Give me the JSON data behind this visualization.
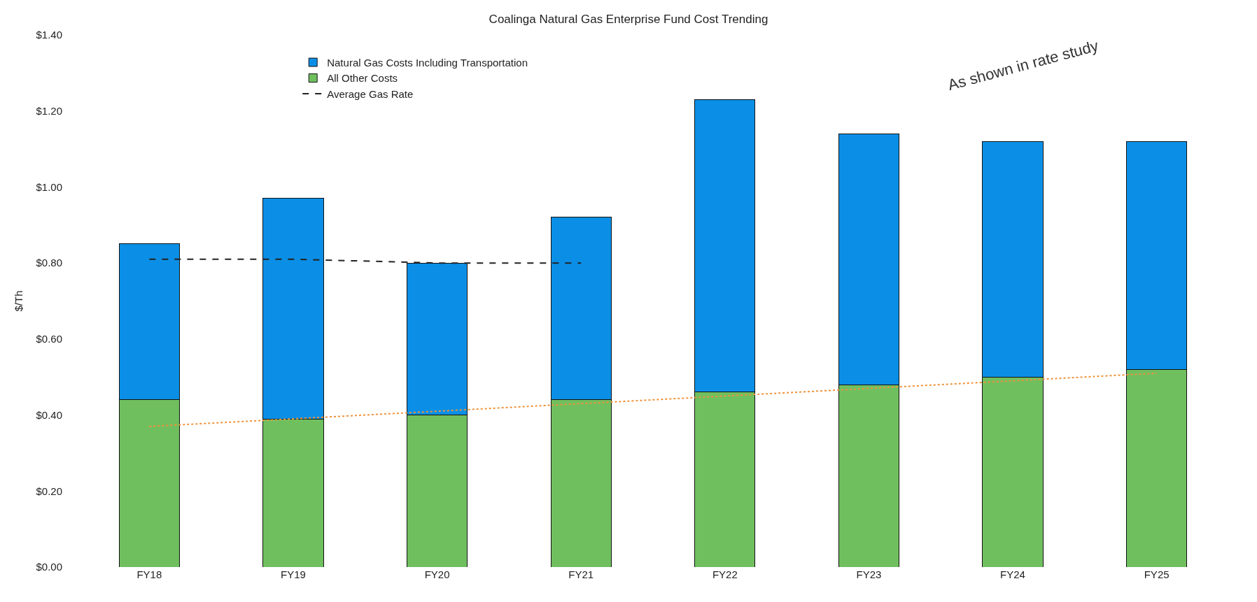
{
  "chart_data": {
    "type": "bar",
    "title": "Coalinga Natural Gas Enterprise Fund Cost Trending",
    "ylabel": "$/Th",
    "categories": [
      "FY18",
      "FY19",
      "FY20",
      "FY21",
      "FY22",
      "FY23",
      "FY24",
      "FY25"
    ],
    "stacked": true,
    "series": [
      {
        "name": "All Other Costs",
        "color": "#70bf5f",
        "values": [
          0.44,
          0.39,
          0.4,
          0.44,
          0.46,
          0.48,
          0.5,
          0.52
        ]
      },
      {
        "name": "Natural Gas Costs Including Transportation",
        "color": "#0b8fe6",
        "values": [
          0.41,
          0.58,
          0.4,
          0.48,
          0.77,
          0.66,
          0.62,
          0.6
        ]
      },
      {
        "name": "Average Gas Rate",
        "type": "line",
        "color": "#222222",
        "line_style": "dashed",
        "values": [
          0.81,
          0.81,
          0.8,
          0.8,
          null,
          null,
          null,
          null
        ]
      },
      {
        "type": "line",
        "color": "#f0923a",
        "line_style": "dotted",
        "values": [
          0.37,
          0.39,
          0.41,
          0.43,
          0.45,
          0.47,
          0.49,
          0.51
        ]
      }
    ],
    "ylim": [
      0,
      1.4
    ],
    "yticks": [
      {
        "value": 0,
        "label": "$0.00"
      },
      {
        "value": 0.2,
        "label": "$0.20"
      },
      {
        "value": 0.4,
        "label": "$0.40"
      },
      {
        "value": 0.6,
        "label": "$0.60"
      },
      {
        "value": 0.8,
        "label": "$0.80"
      },
      {
        "value": 1.0,
        "label": "$1.00"
      },
      {
        "value": 1.2,
        "label": "$1.20"
      },
      {
        "value": 1.4,
        "label": "$1.40"
      }
    ],
    "annotations": [
      "As shown in rate study"
    ],
    "legend": "top left",
    "marker": "none"
  }
}
